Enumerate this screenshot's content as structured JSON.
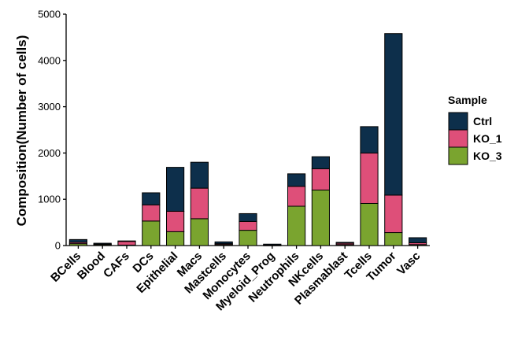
{
  "chart_data": {
    "type": "bar",
    "stacked": true,
    "ylabel": "Composition(Number of cells)",
    "xlabel": "",
    "ylim": [
      0,
      5000
    ],
    "yticks": [
      0,
      1000,
      2000,
      3000,
      4000,
      5000
    ],
    "categories": [
      "BCells",
      "Blood",
      "CAFs",
      "DCs",
      "Epithelial",
      "Macs",
      "Mastcells",
      "Monocytes",
      "Myeloid_Prog",
      "Neutrophils",
      "NKcells",
      "Plasmablast",
      "Tcells",
      "Tumor",
      "Vasc"
    ],
    "series": [
      {
        "name": "KO_3",
        "color": "#7aa42f",
        "values": [
          40,
          20,
          10,
          530,
          300,
          580,
          20,
          330,
          5,
          850,
          1200,
          20,
          910,
          280,
          20
        ]
      },
      {
        "name": "KO_1",
        "color": "#de4f79",
        "values": [
          30,
          10,
          80,
          350,
          440,
          660,
          20,
          190,
          5,
          430,
          460,
          30,
          1090,
          810,
          40
        ]
      },
      {
        "name": "Ctrl",
        "color": "#0d2f4b",
        "values": [
          60,
          20,
          10,
          260,
          950,
          560,
          40,
          170,
          20,
          270,
          260,
          20,
          570,
          3490,
          110
        ]
      }
    ],
    "legend": {
      "title": "Sample",
      "position": "right",
      "order": [
        "Ctrl",
        "KO_1",
        "KO_3"
      ]
    },
    "grid": false
  }
}
